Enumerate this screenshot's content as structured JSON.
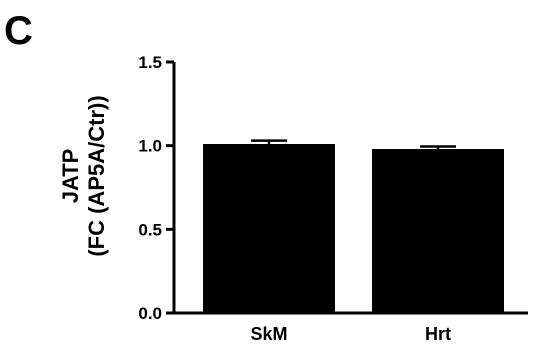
{
  "panel_label": "C",
  "chart_data": {
    "type": "bar",
    "categories": [
      "SkM",
      "Hrt"
    ],
    "values": [
      1.01,
      0.98
    ],
    "errors": [
      0.02,
      0.015
    ],
    "ylabel_line1": "JATP",
    "ylabel_line2": "(FC (AP5A/Ctr))",
    "ylim": [
      0,
      1.5
    ],
    "yticks": [
      "0.0",
      "0.5",
      "1.0",
      "1.5"
    ],
    "ytick_values": [
      0,
      0.5,
      1.0,
      1.5
    ],
    "grid": false,
    "bar_color": "#000000"
  }
}
